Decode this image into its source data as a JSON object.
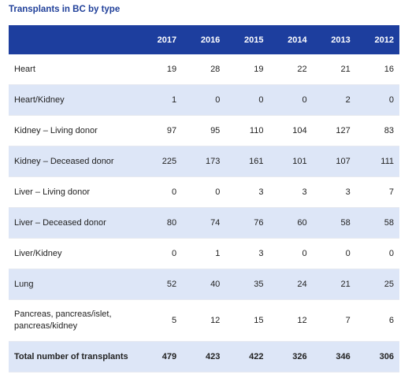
{
  "header": {
    "title": "Transplants in BC by type"
  },
  "table": {
    "columns": [
      "2017",
      "2016",
      "2015",
      "2014",
      "2013",
      "2012"
    ],
    "rows": [
      {
        "label": "Heart",
        "values": [
          19,
          28,
          19,
          22,
          21,
          16
        ]
      },
      {
        "label": "Heart/Kidney",
        "values": [
          1,
          0,
          0,
          0,
          2,
          0
        ]
      },
      {
        "label": "Kidney – Living donor",
        "values": [
          97,
          95,
          110,
          104,
          127,
          83
        ]
      },
      {
        "label": "Kidney – Deceased donor",
        "values": [
          225,
          173,
          161,
          101,
          107,
          111
        ]
      },
      {
        "label": "Liver – Living donor",
        "values": [
          0,
          0,
          3,
          3,
          3,
          7
        ]
      },
      {
        "label": "Liver – Deceased donor",
        "values": [
          80,
          74,
          76,
          60,
          58,
          58
        ]
      },
      {
        "label": "Liver/Kidney",
        "values": [
          0,
          1,
          3,
          0,
          0,
          0
        ]
      },
      {
        "label": "Lung",
        "values": [
          52,
          40,
          35,
          24,
          21,
          25
        ]
      },
      {
        "label": "Pancreas, pancreas/islet, pancreas/kidney",
        "values": [
          5,
          12,
          15,
          12,
          7,
          6
        ]
      }
    ],
    "total": {
      "label": "Total number of transplants",
      "values": [
        479,
        423,
        422,
        326,
        346,
        306
      ]
    }
  }
}
